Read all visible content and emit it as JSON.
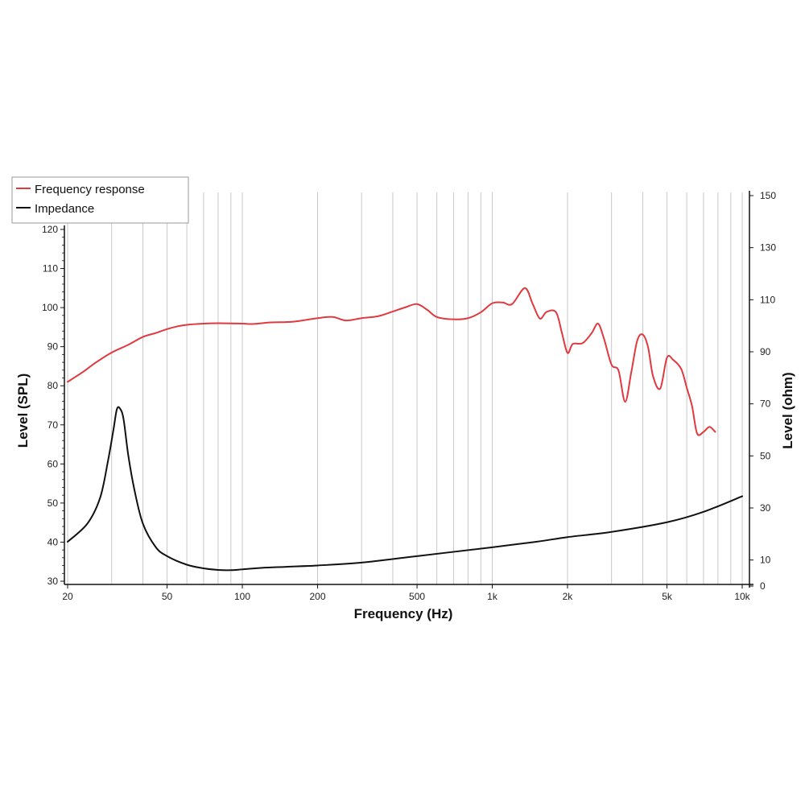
{
  "chart_data": {
    "type": "line",
    "xlabel": "Frequency (Hz)",
    "ylabel": "Level (SPL)",
    "y2label": "Level (ohm)",
    "xscale": "log",
    "xlim": [
      20,
      10000
    ],
    "ylim": [
      30,
      120
    ],
    "y2lim": [
      0,
      150
    ],
    "grid": true,
    "legend_position": "top-left",
    "x_ticks": [
      {
        "value": 20,
        "label": "20"
      },
      {
        "value": 50,
        "label": "50"
      },
      {
        "value": 100,
        "label": "100"
      },
      {
        "value": 200,
        "label": "200"
      },
      {
        "value": 500,
        "label": "500"
      },
      {
        "value": 1000,
        "label": "1k"
      },
      {
        "value": 2000,
        "label": "2k"
      },
      {
        "value": 5000,
        "label": "5k"
      },
      {
        "value": 10000,
        "label": "10k"
      }
    ],
    "y_ticks": [
      {
        "value": 30,
        "label": "30"
      },
      {
        "value": 40,
        "label": "40"
      },
      {
        "value": 50,
        "label": "50"
      },
      {
        "value": 60,
        "label": "60"
      },
      {
        "value": 70,
        "label": "70"
      },
      {
        "value": 80,
        "label": "80"
      },
      {
        "value": 90,
        "label": "90"
      },
      {
        "value": 100,
        "label": "100"
      },
      {
        "value": 110,
        "label": "110"
      },
      {
        "value": 120,
        "label": "120"
      }
    ],
    "y2_ticks": [
      {
        "value": 0,
        "label": "0"
      },
      {
        "value": 10,
        "label": "10"
      },
      {
        "value": 30,
        "label": "30"
      },
      {
        "value": 50,
        "label": "50"
      },
      {
        "value": 70,
        "label": "70"
      },
      {
        "value": 90,
        "label": "90"
      },
      {
        "value": 110,
        "label": "110"
      },
      {
        "value": 130,
        "label": "130"
      },
      {
        "value": 150,
        "label": "150"
      }
    ],
    "series": [
      {
        "name": "Frequency response",
        "color": "#e0393e",
        "axis": "left",
        "x": [
          20,
          23,
          26,
          30,
          35,
          40,
          45,
          50,
          55,
          60,
          70,
          80,
          100,
          110,
          130,
          160,
          200,
          230,
          260,
          300,
          350,
          400,
          450,
          500,
          550,
          600,
          700,
          800,
          900,
          1000,
          1100,
          1200,
          1350,
          1450,
          1550,
          1650,
          1800,
          1900,
          2000,
          2100,
          2300,
          2500,
          2650,
          2800,
          3000,
          3200,
          3400,
          3600,
          3800,
          4000,
          4200,
          4400,
          4700,
          5000,
          5300,
          5700,
          6000,
          6300,
          6600,
          7000,
          7400,
          7800
        ],
        "y": [
          81,
          83.5,
          86,
          88.5,
          90.5,
          92.5,
          93.5,
          94.5,
          95.2,
          95.6,
          95.9,
          96,
          95.9,
          95.8,
          96.2,
          96.4,
          97.3,
          97.6,
          96.7,
          97.3,
          97.8,
          99,
          100.1,
          100.9,
          99.4,
          97.6,
          97,
          97.3,
          98.8,
          101.1,
          101.3,
          100.9,
          105,
          101,
          97.2,
          98.9,
          98.8,
          93.5,
          88.4,
          90.7,
          90.9,
          93.5,
          95.9,
          92,
          85.4,
          83.9,
          75.9,
          83.5,
          91.5,
          93.1,
          89.9,
          82.4,
          79.3,
          87.2,
          86.6,
          84.3,
          79.5,
          74.8,
          67.8,
          68.2,
          69.5,
          68.2
        ]
      },
      {
        "name": "Impedance",
        "color": "#111111",
        "axis": "right",
        "x": [
          20,
          24,
          27,
          29,
          30.5,
          31.5,
          32.5,
          33.5,
          35,
          37,
          40,
          45,
          50,
          60,
          70,
          80,
          90,
          100,
          120,
          150,
          200,
          300,
          500,
          1000,
          1500,
          2000,
          3000,
          5000,
          7000,
          10000
        ],
        "y": [
          17,
          24,
          34,
          48,
          60,
          68,
          68,
          64,
          50,
          37,
          24,
          15,
          11.5,
          8.2,
          6.8,
          6.2,
          6.1,
          6.4,
          7,
          7.4,
          7.9,
          9,
          11.5,
          14.9,
          17,
          18.8,
          20.8,
          24.5,
          28.5,
          34.5
        ]
      }
    ]
  }
}
